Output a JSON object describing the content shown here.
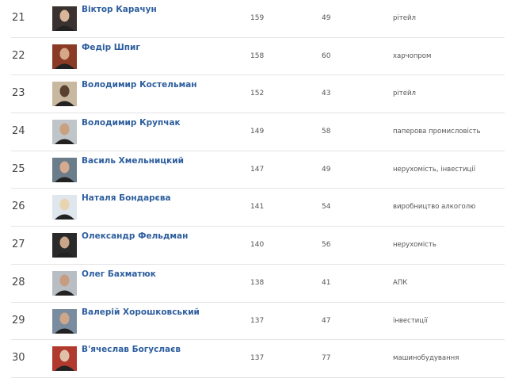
{
  "rows": [
    {
      "rank": "21",
      "name": "Віктор Карачун",
      "v1": "159",
      "v2": "49",
      "sector": "рітейл",
      "photo_bg": "#3a3230",
      "photo_face": "#d9b59a"
    },
    {
      "rank": "22",
      "name": "Федір Шпиг",
      "v1": "158",
      "v2": "60",
      "sector": "харчопром",
      "photo_bg": "#8a3a25",
      "photo_face": "#d6a88a"
    },
    {
      "rank": "23",
      "name": "Володимир Костельман",
      "v1": "152",
      "v2": "43",
      "sector": "рітейл",
      "photo_bg": "#c8b8a0",
      "photo_face": "#5a4030"
    },
    {
      "rank": "24",
      "name": "Володимир Крупчак",
      "v1": "149",
      "v2": "58",
      "sector": "паперова промисловість",
      "photo_bg": "#bfc5c8",
      "photo_face": "#c9a080"
    },
    {
      "rank": "25",
      "name": "Василь Хмельницкий",
      "v1": "147",
      "v2": "49",
      "sector": "нерухомість, інвестиції",
      "photo_bg": "#6b7c8a",
      "photo_face": "#d4ab90"
    },
    {
      "rank": "26",
      "name": "Наталя Бондарєва",
      "v1": "141",
      "v2": "54",
      "sector": "виробництво алкоголю",
      "photo_bg": "#dfe6ee",
      "photo_face": "#e9d4b0"
    },
    {
      "rank": "27",
      "name": "Олександр Фельдман",
      "v1": "140",
      "v2": "56",
      "sector": "нерухомість",
      "photo_bg": "#2a2a2a",
      "photo_face": "#c9a58a"
    },
    {
      "rank": "28",
      "name": "Олег Бахматюк",
      "v1": "138",
      "v2": "41",
      "sector": "АПК",
      "photo_bg": "#b9bec4",
      "photo_face": "#c89c80"
    },
    {
      "rank": "29",
      "name": "Валерій Хорошковський",
      "v1": "137",
      "v2": "47",
      "sector": "інвестиції",
      "photo_bg": "#7a8da0",
      "photo_face": "#d0a68a"
    },
    {
      "rank": "30",
      "name": "В'ячеслав Богуслаєв",
      "v1": "137",
      "v2": "77",
      "sector": "машинобудування",
      "photo_bg": "#b03a2e",
      "photo_face": "#e0c0a8"
    }
  ]
}
